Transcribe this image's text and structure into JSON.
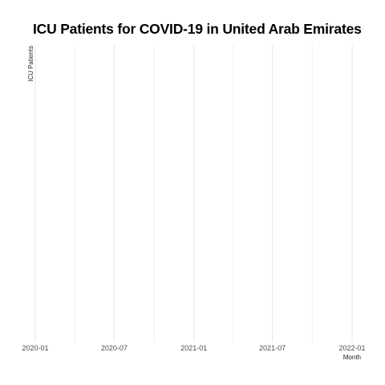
{
  "chart_data": {
    "type": "line",
    "title": "ICU Patients for COVID-19 in United Arab Emirates",
    "xlabel": "Month",
    "ylabel": "ICU Patients",
    "x_tick_labels": [
      "2020-01",
      "2020-07",
      "2021-01",
      "2021-07",
      "2022-01"
    ],
    "x_tick_dates": [
      "2020-01-01",
      "2020-07-01",
      "2021-01-01",
      "2021-07-01",
      "2022-01-01"
    ],
    "x_minor_dates": [
      "2020-04-01",
      "2020-10-01",
      "2021-04-01",
      "2021-10-01"
    ],
    "xlim": [
      "2020-01-01",
      "2022-01-01"
    ],
    "series": [],
    "grid": true,
    "legend": "none"
  }
}
